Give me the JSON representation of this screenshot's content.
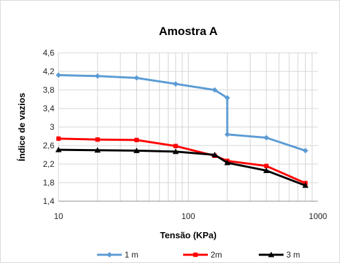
{
  "chart_data": {
    "type": "line",
    "title": "Amostra A",
    "xlabel": "Tensão (KPa)",
    "ylabel": "Índice de vazios",
    "xscale": "log",
    "xlim": [
      10,
      1000
    ],
    "ylim": [
      1.4,
      4.6
    ],
    "xticks": [
      "10",
      "100",
      "1000"
    ],
    "yticks": [
      "1,4",
      "1,8",
      "2,2",
      "2,6",
      "3",
      "3,4",
      "3,8",
      "4,2",
      "4,6"
    ],
    "grid": true,
    "legend_position": "bottom",
    "series": [
      {
        "name": "1 m",
        "color": "#5b9bd5",
        "marker": "diamond",
        "points": [
          [
            10,
            4.12
          ],
          [
            20,
            4.1
          ],
          [
            40,
            4.06
          ],
          [
            80,
            3.93
          ],
          [
            160,
            3.8
          ],
          [
            200,
            3.63
          ],
          [
            200,
            2.84
          ],
          [
            400,
            2.77
          ],
          [
            800,
            2.49
          ]
        ]
      },
      {
        "name": "2m",
        "color": "#ff0000",
        "marker": "square",
        "points": [
          [
            10,
            2.75
          ],
          [
            20,
            2.73
          ],
          [
            40,
            2.72
          ],
          [
            80,
            2.59
          ],
          [
            160,
            2.38
          ],
          [
            200,
            2.27
          ],
          [
            400,
            2.16
          ],
          [
            800,
            1.79
          ]
        ]
      },
      {
        "name": "3 m",
        "color": "#000000",
        "marker": "triangle",
        "points": [
          [
            10,
            2.51
          ],
          [
            20,
            2.5
          ],
          [
            40,
            2.49
          ],
          [
            80,
            2.47
          ],
          [
            160,
            2.4
          ],
          [
            200,
            2.23
          ],
          [
            400,
            2.06
          ],
          [
            800,
            1.74
          ]
        ]
      }
    ]
  }
}
